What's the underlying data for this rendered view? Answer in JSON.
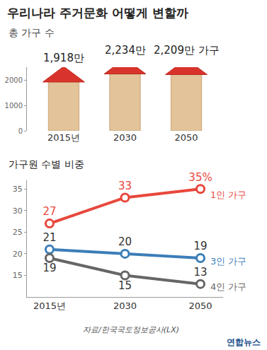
{
  "chart_data": [
    {
      "type": "bar",
      "title": "우리나라 주거문화 어떻게 변할까",
      "subtitle": "총 가구 수",
      "categories": [
        "2015년",
        "2030",
        "2050"
      ],
      "values": [
        1918,
        2234,
        2209
      ],
      "value_labels": [
        "1,918만",
        "2,234만",
        "2,209만 가구"
      ],
      "color": "#e3c39a",
      "ylim": [
        0,
        2500
      ],
      "yticks": [
        0,
        1000,
        2000
      ],
      "grid": false,
      "data_labels": true
    },
    {
      "type": "line",
      "title": "가구원 수별 비중",
      "categories": [
        "2015년",
        "2030",
        "2050"
      ],
      "series": [
        {
          "name": "1인 가구",
          "color": "#e8473c",
          "values": [
            27,
            33,
            35
          ],
          "value_labels": [
            "27",
            "33",
            "35%"
          ]
        },
        {
          "name": "3인 가구",
          "color": "#3b7eb8",
          "values": [
            21,
            20,
            19
          ]
        },
        {
          "name": "4인 가구",
          "color": "#666666",
          "values": [
            19,
            15,
            13
          ]
        }
      ],
      "ylim": [
        10,
        37
      ],
      "yticks": [
        15,
        20,
        25,
        30,
        35
      ],
      "grid": false,
      "data_labels": true,
      "marker": "circle"
    }
  ],
  "source": "자료/한국국토정보공사(LX)",
  "credit": "연합뉴스"
}
